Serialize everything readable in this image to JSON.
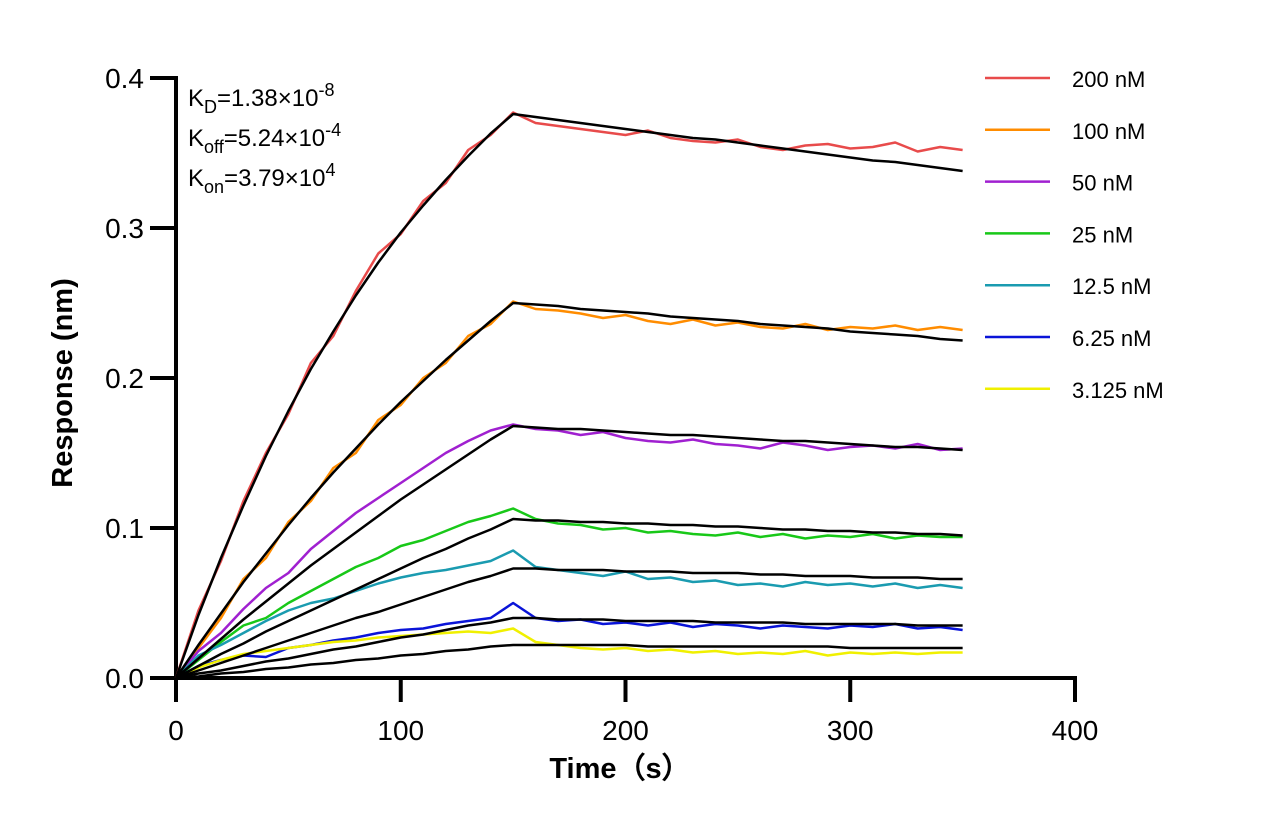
{
  "chart_data": {
    "type": "line",
    "xlabel": "Time（s）",
    "ylabel": "Response (nm)",
    "xlim": [
      0,
      400
    ],
    "ylim": [
      0,
      0.4
    ],
    "xticks": [
      0,
      100,
      200,
      300,
      400
    ],
    "yticks": [
      {
        "value": 0,
        "label": "0.0"
      },
      0.1,
      0.2,
      0.3,
      0.4
    ],
    "annotations": [
      {
        "base": "K",
        "sub": "D",
        "text": "=1.38×10",
        "sup": "-8"
      },
      {
        "base": "K",
        "sub": "off",
        "text": "=5.24×10",
        "sup": "-4"
      },
      {
        "base": "K",
        "sub": "on",
        "text": "=3.79×10",
        "sup": "4"
      }
    ],
    "x": [
      0,
      10,
      20,
      30,
      40,
      50,
      60,
      70,
      80,
      90,
      100,
      110,
      120,
      130,
      140,
      150,
      160,
      170,
      180,
      190,
      200,
      210,
      220,
      230,
      240,
      250,
      260,
      270,
      280,
      290,
      300,
      310,
      320,
      330,
      340,
      350
    ],
    "series": [
      {
        "name": "200 nM",
        "color": "#e84b4b",
        "values": [
          0,
          0.045,
          0.078,
          0.118,
          0.15,
          0.176,
          0.21,
          0.228,
          0.258,
          0.283,
          0.296,
          0.318,
          0.33,
          0.352,
          0.362,
          0.377,
          0.37,
          0.368,
          0.366,
          0.364,
          0.362,
          0.365,
          0.36,
          0.358,
          0.357,
          0.359,
          0.354,
          0.352,
          0.355,
          0.356,
          0.353,
          0.354,
          0.357,
          0.351,
          0.354,
          0.352
        ]
      },
      {
        "name": "100 nM",
        "color": "#ff8c00",
        "values": [
          0,
          0.02,
          0.04,
          0.066,
          0.08,
          0.104,
          0.118,
          0.14,
          0.15,
          0.172,
          0.182,
          0.2,
          0.21,
          0.228,
          0.236,
          0.251,
          0.246,
          0.245,
          0.243,
          0.24,
          0.242,
          0.238,
          0.236,
          0.239,
          0.235,
          0.237,
          0.234,
          0.233,
          0.236,
          0.232,
          0.234,
          0.233,
          0.235,
          0.232,
          0.234,
          0.232
        ]
      },
      {
        "name": "50 nM",
        "color": "#a020d0",
        "values": [
          0,
          0.018,
          0.03,
          0.046,
          0.06,
          0.07,
          0.086,
          0.098,
          0.11,
          0.12,
          0.13,
          0.14,
          0.15,
          0.158,
          0.165,
          0.169,
          0.166,
          0.165,
          0.162,
          0.164,
          0.16,
          0.158,
          0.157,
          0.159,
          0.156,
          0.155,
          0.153,
          0.157,
          0.155,
          0.152,
          0.154,
          0.155,
          0.153,
          0.156,
          0.152,
          0.153
        ]
      },
      {
        "name": "25 nM",
        "color": "#18c818",
        "values": [
          0,
          0.012,
          0.024,
          0.035,
          0.04,
          0.05,
          0.058,
          0.066,
          0.074,
          0.08,
          0.088,
          0.092,
          0.098,
          0.104,
          0.108,
          0.113,
          0.106,
          0.103,
          0.102,
          0.099,
          0.1,
          0.097,
          0.098,
          0.096,
          0.095,
          0.097,
          0.094,
          0.096,
          0.093,
          0.095,
          0.094,
          0.096,
          0.093,
          0.095,
          0.094,
          0.094
        ]
      },
      {
        "name": "12.5 nM",
        "color": "#1a9bb0",
        "values": [
          0,
          0.015,
          0.022,
          0.03,
          0.038,
          0.045,
          0.05,
          0.053,
          0.058,
          0.063,
          0.067,
          0.07,
          0.072,
          0.075,
          0.078,
          0.085,
          0.074,
          0.072,
          0.07,
          0.068,
          0.071,
          0.066,
          0.067,
          0.064,
          0.065,
          0.062,
          0.063,
          0.061,
          0.064,
          0.062,
          0.063,
          0.061,
          0.063,
          0.06,
          0.062,
          0.06
        ]
      },
      {
        "name": "6.25 nM",
        "color": "#0a14d8",
        "values": [
          0,
          0.008,
          0.012,
          0.015,
          0.014,
          0.02,
          0.022,
          0.025,
          0.027,
          0.03,
          0.032,
          0.033,
          0.036,
          0.038,
          0.04,
          0.05,
          0.04,
          0.038,
          0.039,
          0.036,
          0.037,
          0.035,
          0.037,
          0.034,
          0.036,
          0.035,
          0.033,
          0.035,
          0.034,
          0.033,
          0.035,
          0.034,
          0.036,
          0.033,
          0.034,
          0.032
        ]
      },
      {
        "name": "3.125 nM",
        "color": "#f0f000",
        "values": [
          0,
          0.007,
          0.012,
          0.016,
          0.018,
          0.02,
          0.022,
          0.024,
          0.025,
          0.027,
          0.028,
          0.029,
          0.03,
          0.031,
          0.03,
          0.033,
          0.024,
          0.022,
          0.02,
          0.019,
          0.02,
          0.018,
          0.019,
          0.017,
          0.018,
          0.016,
          0.017,
          0.016,
          0.018,
          0.015,
          0.017,
          0.016,
          0.017,
          0.016,
          0.017,
          0.017
        ]
      }
    ],
    "fits": [
      {
        "color": "#000000",
        "values": [
          0,
          0.042,
          0.08,
          0.115,
          0.148,
          0.178,
          0.206,
          0.231,
          0.255,
          0.277,
          0.297,
          0.315,
          0.332,
          0.348,
          0.363,
          0.376,
          0.374,
          0.372,
          0.37,
          0.368,
          0.366,
          0.364,
          0.362,
          0.36,
          0.359,
          0.357,
          0.355,
          0.353,
          0.351,
          0.349,
          0.347,
          0.345,
          0.344,
          0.342,
          0.34,
          0.338
        ]
      },
      {
        "color": "#000000",
        "values": [
          0,
          0.022,
          0.043,
          0.064,
          0.083,
          0.102,
          0.12,
          0.137,
          0.153,
          0.169,
          0.184,
          0.198,
          0.212,
          0.225,
          0.238,
          0.25,
          0.249,
          0.248,
          0.246,
          0.245,
          0.244,
          0.243,
          0.241,
          0.24,
          0.239,
          0.238,
          0.236,
          0.235,
          0.234,
          0.233,
          0.231,
          0.23,
          0.229,
          0.228,
          0.226,
          0.225
        ]
      },
      {
        "color": "#000000",
        "values": [
          0,
          0.013,
          0.026,
          0.039,
          0.051,
          0.063,
          0.075,
          0.086,
          0.097,
          0.108,
          0.119,
          0.129,
          0.139,
          0.149,
          0.159,
          0.168,
          0.167,
          0.166,
          0.166,
          0.165,
          0.164,
          0.163,
          0.162,
          0.162,
          0.161,
          0.16,
          0.159,
          0.158,
          0.158,
          0.157,
          0.156,
          0.155,
          0.154,
          0.154,
          0.153,
          0.152
        ]
      },
      {
        "color": "#000000",
        "values": [
          0,
          0.008,
          0.016,
          0.023,
          0.031,
          0.038,
          0.045,
          0.052,
          0.059,
          0.066,
          0.073,
          0.08,
          0.086,
          0.093,
          0.099,
          0.106,
          0.105,
          0.105,
          0.104,
          0.104,
          0.103,
          0.103,
          0.102,
          0.102,
          0.101,
          0.101,
          0.1,
          0.099,
          0.099,
          0.098,
          0.098,
          0.097,
          0.097,
          0.096,
          0.096,
          0.095
        ]
      },
      {
        "color": "#000000",
        "values": [
          0,
          0.005,
          0.01,
          0.015,
          0.02,
          0.025,
          0.03,
          0.035,
          0.04,
          0.044,
          0.049,
          0.054,
          0.059,
          0.064,
          0.068,
          0.073,
          0.073,
          0.072,
          0.072,
          0.072,
          0.071,
          0.071,
          0.071,
          0.07,
          0.07,
          0.07,
          0.069,
          0.069,
          0.068,
          0.068,
          0.068,
          0.067,
          0.067,
          0.067,
          0.066,
          0.066
        ]
      },
      {
        "color": "#000000",
        "values": [
          0,
          0.003,
          0.005,
          0.008,
          0.011,
          0.013,
          0.016,
          0.019,
          0.021,
          0.024,
          0.027,
          0.029,
          0.032,
          0.035,
          0.037,
          0.04,
          0.04,
          0.039,
          0.039,
          0.039,
          0.038,
          0.038,
          0.038,
          0.038,
          0.037,
          0.037,
          0.037,
          0.037,
          0.036,
          0.036,
          0.036,
          0.036,
          0.036,
          0.035,
          0.035,
          0.035
        ]
      },
      {
        "color": "#000000",
        "values": [
          0,
          0.001,
          0.003,
          0.004,
          0.006,
          0.007,
          0.009,
          0.01,
          0.012,
          0.013,
          0.015,
          0.016,
          0.018,
          0.019,
          0.021,
          0.022,
          0.022,
          0.022,
          0.022,
          0.022,
          0.022,
          0.021,
          0.021,
          0.021,
          0.021,
          0.021,
          0.021,
          0.021,
          0.021,
          0.021,
          0.02,
          0.02,
          0.02,
          0.02,
          0.02,
          0.02
        ]
      }
    ]
  }
}
